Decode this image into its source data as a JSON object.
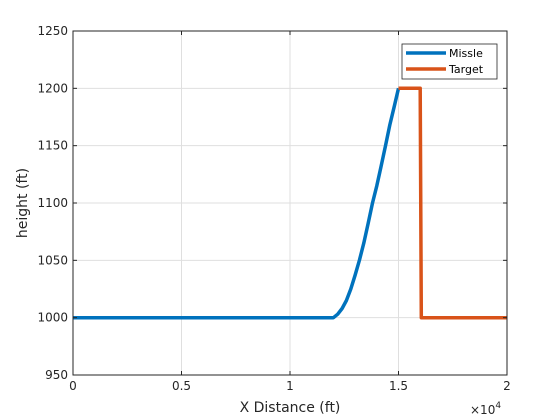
{
  "chart_data": {
    "type": "line",
    "title": "",
    "xlabel": "X Distance (ft)",
    "ylabel": "height (ft)",
    "x_multiplier_label": "×10",
    "x_multiplier_exponent": "4",
    "xlim": [
      0,
      20000
    ],
    "ylim": [
      950,
      1250
    ],
    "x_ticks": [
      0,
      5000,
      10000,
      15000,
      20000
    ],
    "x_tick_labels": [
      "0",
      "0.5",
      "1",
      "1.5",
      "2"
    ],
    "y_ticks": [
      950,
      1000,
      1050,
      1100,
      1150,
      1200,
      1250
    ],
    "y_tick_labels": [
      "950",
      "1000",
      "1050",
      "1100",
      "1150",
      "1200",
      "1250"
    ],
    "grid": true,
    "legend_position": "top-right",
    "series": [
      {
        "name": "Missle",
        "color": "#0072bd",
        "x": [
          0,
          12000,
          12200,
          12400,
          12600,
          12800,
          13000,
          13200,
          13400,
          13600,
          13800,
          14000,
          14200,
          14400,
          14600,
          14800,
          15000
        ],
        "y": [
          1000,
          1000,
          1003,
          1008,
          1015,
          1025,
          1037,
          1050,
          1065,
          1082,
          1100,
          1115,
          1132,
          1150,
          1168,
          1184,
          1200
        ]
      },
      {
        "name": "Target",
        "color": "#d95319",
        "x": [
          15000,
          16000,
          16050,
          20000
        ],
        "y": [
          1200,
          1200,
          1000,
          1000
        ]
      }
    ]
  }
}
